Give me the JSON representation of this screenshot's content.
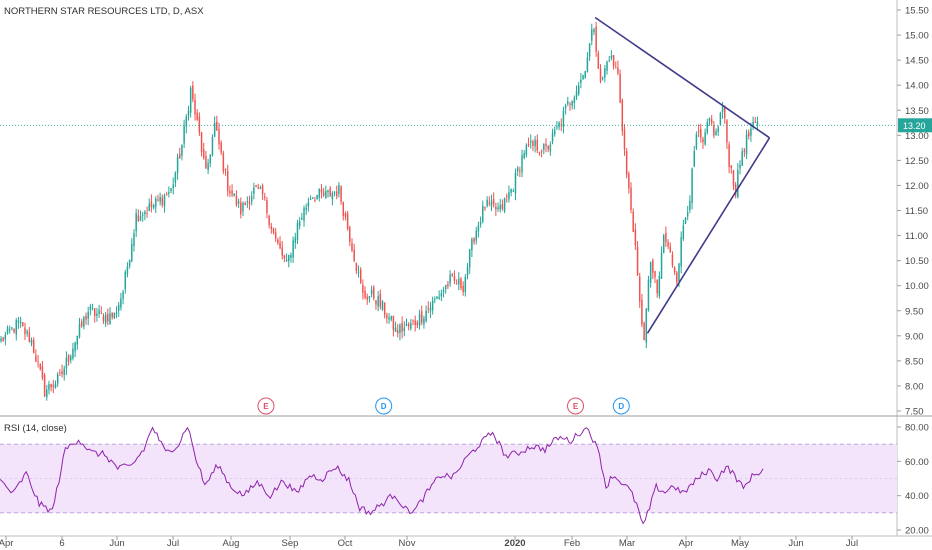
{
  "chart_data": [
    {
      "type": "candlestick",
      "title": "NORTHERN STAR RESOURCES LTD, D, ASX",
      "y_ticks": [
        "15.50",
        "15.00",
        "14.50",
        "14.00",
        "13.50",
        "13.00",
        "12.50",
        "12.00",
        "11.50",
        "11.00",
        "10.50",
        "10.00",
        "9.50",
        "9.00",
        "8.50",
        "8.00",
        "7.50"
      ],
      "ylim": [
        7.45,
        15.6
      ],
      "x_ticks": [
        "Apr",
        "6",
        "Jun",
        "Jul",
        "Aug",
        "Sep",
        "Oct",
        "Nov",
        "2020",
        "Feb",
        "Mar",
        "Apr",
        "May",
        "Jun",
        "Jul"
      ],
      "last_price": "13.20",
      "anchors": [
        {
          "day": 0,
          "close": 8.9
        },
        {
          "day": 8,
          "close": 9.25
        },
        {
          "day": 14,
          "close": 8.9
        },
        {
          "day": 20,
          "close": 7.9
        },
        {
          "day": 27,
          "close": 8.15
        },
        {
          "day": 34,
          "close": 8.9
        },
        {
          "day": 40,
          "close": 9.5
        },
        {
          "day": 46,
          "close": 9.4
        },
        {
          "day": 52,
          "close": 9.4
        },
        {
          "day": 56,
          "close": 9.9
        },
        {
          "day": 62,
          "close": 11.4
        },
        {
          "day": 70,
          "close": 11.6
        },
        {
          "day": 78,
          "close": 11.9
        },
        {
          "day": 83,
          "close": 12.8
        },
        {
          "day": 87,
          "close": 13.9
        },
        {
          "day": 91,
          "close": 13.0
        },
        {
          "day": 94,
          "close": 12.2
        },
        {
          "day": 98,
          "close": 13.2
        },
        {
          "day": 104,
          "close": 12.0
        },
        {
          "day": 110,
          "close": 11.5
        },
        {
          "day": 116,
          "close": 11.9
        },
        {
          "day": 120,
          "close": 11.8
        },
        {
          "day": 126,
          "close": 10.9
        },
        {
          "day": 131,
          "close": 10.4
        },
        {
          "day": 136,
          "close": 11.2
        },
        {
          "day": 142,
          "close": 11.8
        },
        {
          "day": 149,
          "close": 11.8
        },
        {
          "day": 155,
          "close": 11.9
        },
        {
          "day": 161,
          "close": 10.8
        },
        {
          "day": 166,
          "close": 9.8
        },
        {
          "day": 171,
          "close": 9.8
        },
        {
          "day": 176,
          "close": 9.5
        },
        {
          "day": 181,
          "close": 9.1
        },
        {
          "day": 188,
          "close": 9.2
        },
        {
          "day": 193,
          "close": 9.4
        },
        {
          "day": 199,
          "close": 9.7
        },
        {
          "day": 206,
          "close": 10.1
        },
        {
          "day": 212,
          "close": 10.0
        },
        {
          "day": 217,
          "close": 11.0
        },
        {
          "day": 222,
          "close": 11.6
        },
        {
          "day": 229,
          "close": 11.5
        },
        {
          "day": 235,
          "close": 12.0
        },
        {
          "day": 240,
          "close": 12.7
        },
        {
          "day": 245,
          "close": 12.8
        },
        {
          "day": 250,
          "close": 12.7
        },
        {
          "day": 256,
          "close": 13.2
        },
        {
          "day": 261,
          "close": 13.7
        },
        {
          "day": 267,
          "close": 14.2
        },
        {
          "day": 270,
          "close": 14.8
        },
        {
          "day": 272,
          "close": 15.2
        },
        {
          "day": 275,
          "close": 14.0
        },
        {
          "day": 279,
          "close": 14.6
        },
        {
          "day": 283,
          "close": 14.2
        },
        {
          "day": 287,
          "close": 12.2
        },
        {
          "day": 290,
          "close": 11.2
        },
        {
          "day": 293,
          "close": 9.6
        },
        {
          "day": 295,
          "close": 9.0
        },
        {
          "day": 298,
          "close": 10.5
        },
        {
          "day": 301,
          "close": 9.8
        },
        {
          "day": 304,
          "close": 11.0
        },
        {
          "day": 307,
          "close": 10.6
        },
        {
          "day": 310,
          "close": 10.2
        },
        {
          "day": 313,
          "close": 11.2
        },
        {
          "day": 316,
          "close": 11.8
        },
        {
          "day": 319,
          "close": 13.0
        },
        {
          "day": 322,
          "close": 12.8
        },
        {
          "day": 325,
          "close": 13.3
        },
        {
          "day": 328,
          "close": 13.0
        },
        {
          "day": 331,
          "close": 13.6
        },
        {
          "day": 334,
          "close": 12.5
        },
        {
          "day": 337,
          "close": 11.9
        },
        {
          "day": 340,
          "close": 12.7
        },
        {
          "day": 344,
          "close": 13.1
        },
        {
          "day": 347,
          "close": 13.2
        }
      ],
      "triangle_lines": [
        {
          "from": {
            "day": 273,
            "price": 15.35
          },
          "to": {
            "day": 353,
            "price": 12.95
          }
        },
        {
          "from": {
            "day": 297,
            "price": 9.05
          },
          "to": {
            "day": 353,
            "price": 12.95
          }
        }
      ],
      "event_markers": [
        {
          "label": "E",
          "day": 122,
          "color": "#e04e68"
        },
        {
          "label": "D",
          "day": 176,
          "color": "#2196f3"
        },
        {
          "label": "E",
          "day": 264,
          "color": "#e04e68"
        },
        {
          "label": "D",
          "day": 285,
          "color": "#2196f3"
        }
      ]
    },
    {
      "type": "line",
      "title": "RSI (14, close)",
      "y_ticks": [
        "80.00",
        "60.00",
        "40.00",
        "20.00"
      ],
      "ylim": [
        17,
        86
      ],
      "band": [
        30,
        70
      ],
      "mid_line": 50,
      "anchors": [
        {
          "day": 0,
          "value": 49
        },
        {
          "day": 6,
          "value": 41
        },
        {
          "day": 12,
          "value": 53
        },
        {
          "day": 18,
          "value": 35
        },
        {
          "day": 24,
          "value": 31
        },
        {
          "day": 30,
          "value": 67
        },
        {
          "day": 36,
          "value": 73
        },
        {
          "day": 42,
          "value": 65
        },
        {
          "day": 48,
          "value": 64
        },
        {
          "day": 54,
          "value": 56
        },
        {
          "day": 60,
          "value": 57
        },
        {
          "day": 66,
          "value": 67
        },
        {
          "day": 70,
          "value": 80
        },
        {
          "day": 76,
          "value": 65
        },
        {
          "day": 82,
          "value": 70
        },
        {
          "day": 86,
          "value": 81
        },
        {
          "day": 90,
          "value": 61
        },
        {
          "day": 94,
          "value": 46
        },
        {
          "day": 100,
          "value": 58
        },
        {
          "day": 106,
          "value": 45
        },
        {
          "day": 112,
          "value": 40
        },
        {
          "day": 118,
          "value": 48
        },
        {
          "day": 124,
          "value": 40
        },
        {
          "day": 130,
          "value": 49
        },
        {
          "day": 136,
          "value": 41
        },
        {
          "day": 142,
          "value": 52
        },
        {
          "day": 148,
          "value": 50
        },
        {
          "day": 154,
          "value": 57
        },
        {
          "day": 160,
          "value": 49
        },
        {
          "day": 165,
          "value": 33
        },
        {
          "day": 170,
          "value": 30
        },
        {
          "day": 176,
          "value": 36
        },
        {
          "day": 181,
          "value": 41
        },
        {
          "day": 186,
          "value": 32
        },
        {
          "day": 190,
          "value": 31
        },
        {
          "day": 196,
          "value": 42
        },
        {
          "day": 202,
          "value": 52
        },
        {
          "day": 208,
          "value": 51
        },
        {
          "day": 214,
          "value": 62
        },
        {
          "day": 220,
          "value": 70
        },
        {
          "day": 226,
          "value": 77
        },
        {
          "day": 232,
          "value": 63
        },
        {
          "day": 238,
          "value": 65
        },
        {
          "day": 244,
          "value": 69
        },
        {
          "day": 250,
          "value": 67
        },
        {
          "day": 256,
          "value": 74
        },
        {
          "day": 262,
          "value": 72
        },
        {
          "day": 267,
          "value": 78
        },
        {
          "day": 270,
          "value": 79
        },
        {
          "day": 272,
          "value": 73
        },
        {
          "day": 275,
          "value": 64
        },
        {
          "day": 278,
          "value": 45
        },
        {
          "day": 281,
          "value": 52
        },
        {
          "day": 285,
          "value": 48
        },
        {
          "day": 289,
          "value": 43
        },
        {
          "day": 292,
          "value": 35
        },
        {
          "day": 295,
          "value": 22
        },
        {
          "day": 298,
          "value": 33
        },
        {
          "day": 301,
          "value": 45
        },
        {
          "day": 305,
          "value": 42
        },
        {
          "day": 309,
          "value": 46
        },
        {
          "day": 313,
          "value": 41
        },
        {
          "day": 317,
          "value": 46
        },
        {
          "day": 321,
          "value": 51
        },
        {
          "day": 325,
          "value": 55
        },
        {
          "day": 329,
          "value": 50
        },
        {
          "day": 333,
          "value": 57
        },
        {
          "day": 337,
          "value": 52
        },
        {
          "day": 341,
          "value": 44
        },
        {
          "day": 344,
          "value": 50
        },
        {
          "day": 347,
          "value": 53
        },
        {
          "day": 350,
          "value": 55
        }
      ]
    }
  ],
  "colors": {
    "up": "#26a69a",
    "down": "#ef5350",
    "trendline": "#3f3a8a",
    "rsi_line": "#8e24aa",
    "rsi_band": "#f3e3fb",
    "price_label": "#26a69a"
  }
}
